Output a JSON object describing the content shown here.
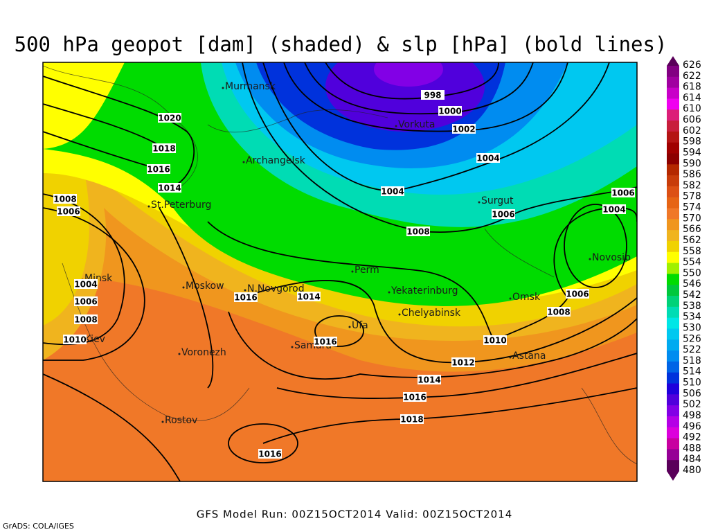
{
  "header": {
    "title": "500 hPa geopot [dam] (shaded) & slp [hPa] (bold lines)"
  },
  "footer": {
    "run": "GFS Model Run: 00Z15OCT2014  Valid: 00Z15OCT2014",
    "credit": "GrADS: COLA/IGES"
  },
  "cities": [
    "Murmansk",
    "Vorkuta",
    "Archangelsk",
    "Surgut",
    "St.Peterburg",
    "Minsk",
    "Moskow",
    "N.Novgorod",
    "Perm",
    "Yekaterinburg",
    "Omsk",
    "Novosib",
    "Chelyabinsk",
    "Ufa",
    "Samara",
    "Kiev",
    "Voronezh",
    "Astana",
    "Rostov"
  ],
  "isobar_labels": [
    "998",
    "1000",
    "1002",
    "1004",
    "1004",
    "1006",
    "1008",
    "1006",
    "1004",
    "1006",
    "1008",
    "1010",
    "1012",
    "1014",
    "1016",
    "1018",
    "1016",
    "1020",
    "1018",
    "1016",
    "1014",
    "1008",
    "1006",
    "1004",
    "1006",
    "1008",
    "1010",
    "1016",
    "1014",
    "1016"
  ],
  "colorbar": {
    "levels": [
      626,
      622,
      618,
      614,
      610,
      606,
      602,
      598,
      594,
      590,
      586,
      582,
      578,
      574,
      570,
      566,
      562,
      558,
      554,
      550,
      546,
      542,
      538,
      534,
      530,
      526,
      522,
      518,
      514,
      510,
      506,
      502,
      498,
      496,
      492,
      488,
      484,
      480
    ],
    "colors": [
      "#5a005a",
      "#820082",
      "#a000a0",
      "#c800c8",
      "#f000f0",
      "#dc1e78",
      "#c81e3c",
      "#b41414",
      "#a00000",
      "#8c0000",
      "#b42800",
      "#c83c0a",
      "#dc5014",
      "#e66414",
      "#f07828",
      "#f0961e",
      "#f0b41e",
      "#f0d200",
      "#ffff00",
      "#a0f000",
      "#00dc00",
      "#00c83c",
      "#00d278",
      "#00dcb4",
      "#00e6e6",
      "#00c8f0",
      "#00aaf0",
      "#008cf0",
      "#0064e6",
      "#0032dc",
      "#1e00dc",
      "#5000dc",
      "#8200e6",
      "#b400e6",
      "#dc00dc",
      "#c800a0",
      "#960096",
      "#5a005a"
    ]
  }
}
